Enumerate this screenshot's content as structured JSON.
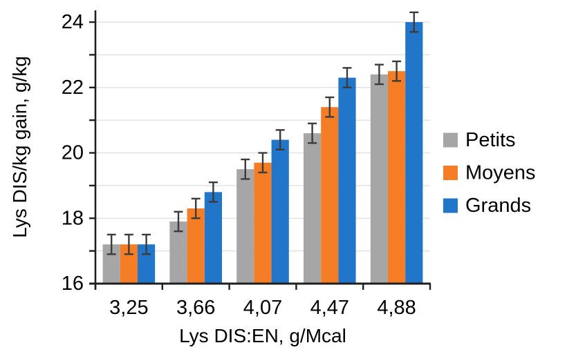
{
  "chart_data": {
    "type": "bar",
    "title": "",
    "xlabel": "Lys DIS:EN, g/Mcal",
    "ylabel": "Lys DIS/kg gain, g/kg",
    "categories": [
      "3,25",
      "3,66",
      "4,07",
      "4,47",
      "4,88"
    ],
    "series": [
      {
        "name": "Petits",
        "color": "#A6A6A6",
        "values": [
          17.2,
          17.9,
          19.5,
          20.6,
          22.4
        ],
        "errors": [
          0.3,
          0.3,
          0.3,
          0.3,
          0.3
        ]
      },
      {
        "name": "Moyens",
        "color": "#F57D26",
        "values": [
          17.2,
          18.3,
          19.7,
          21.4,
          22.5
        ],
        "errors": [
          0.3,
          0.3,
          0.3,
          0.3,
          0.3
        ]
      },
      {
        "name": "Grands",
        "color": "#2176C9",
        "values": [
          17.2,
          18.8,
          20.4,
          22.3,
          24.0
        ],
        "errors": [
          0.3,
          0.3,
          0.3,
          0.3,
          0.3
        ]
      }
    ],
    "ylim": [
      16,
      24.36
    ],
    "ytick_step": 1,
    "yticks_labeled": [
      16,
      18,
      20,
      22,
      24
    ],
    "grid": true,
    "error_bars": true,
    "legend_position": "right"
  },
  "style": {
    "axis_color": "#1f1f1f",
    "grid_color": "#e0e0e0",
    "error_bar_color": "#3b3b3b",
    "background": "#ffffff"
  }
}
